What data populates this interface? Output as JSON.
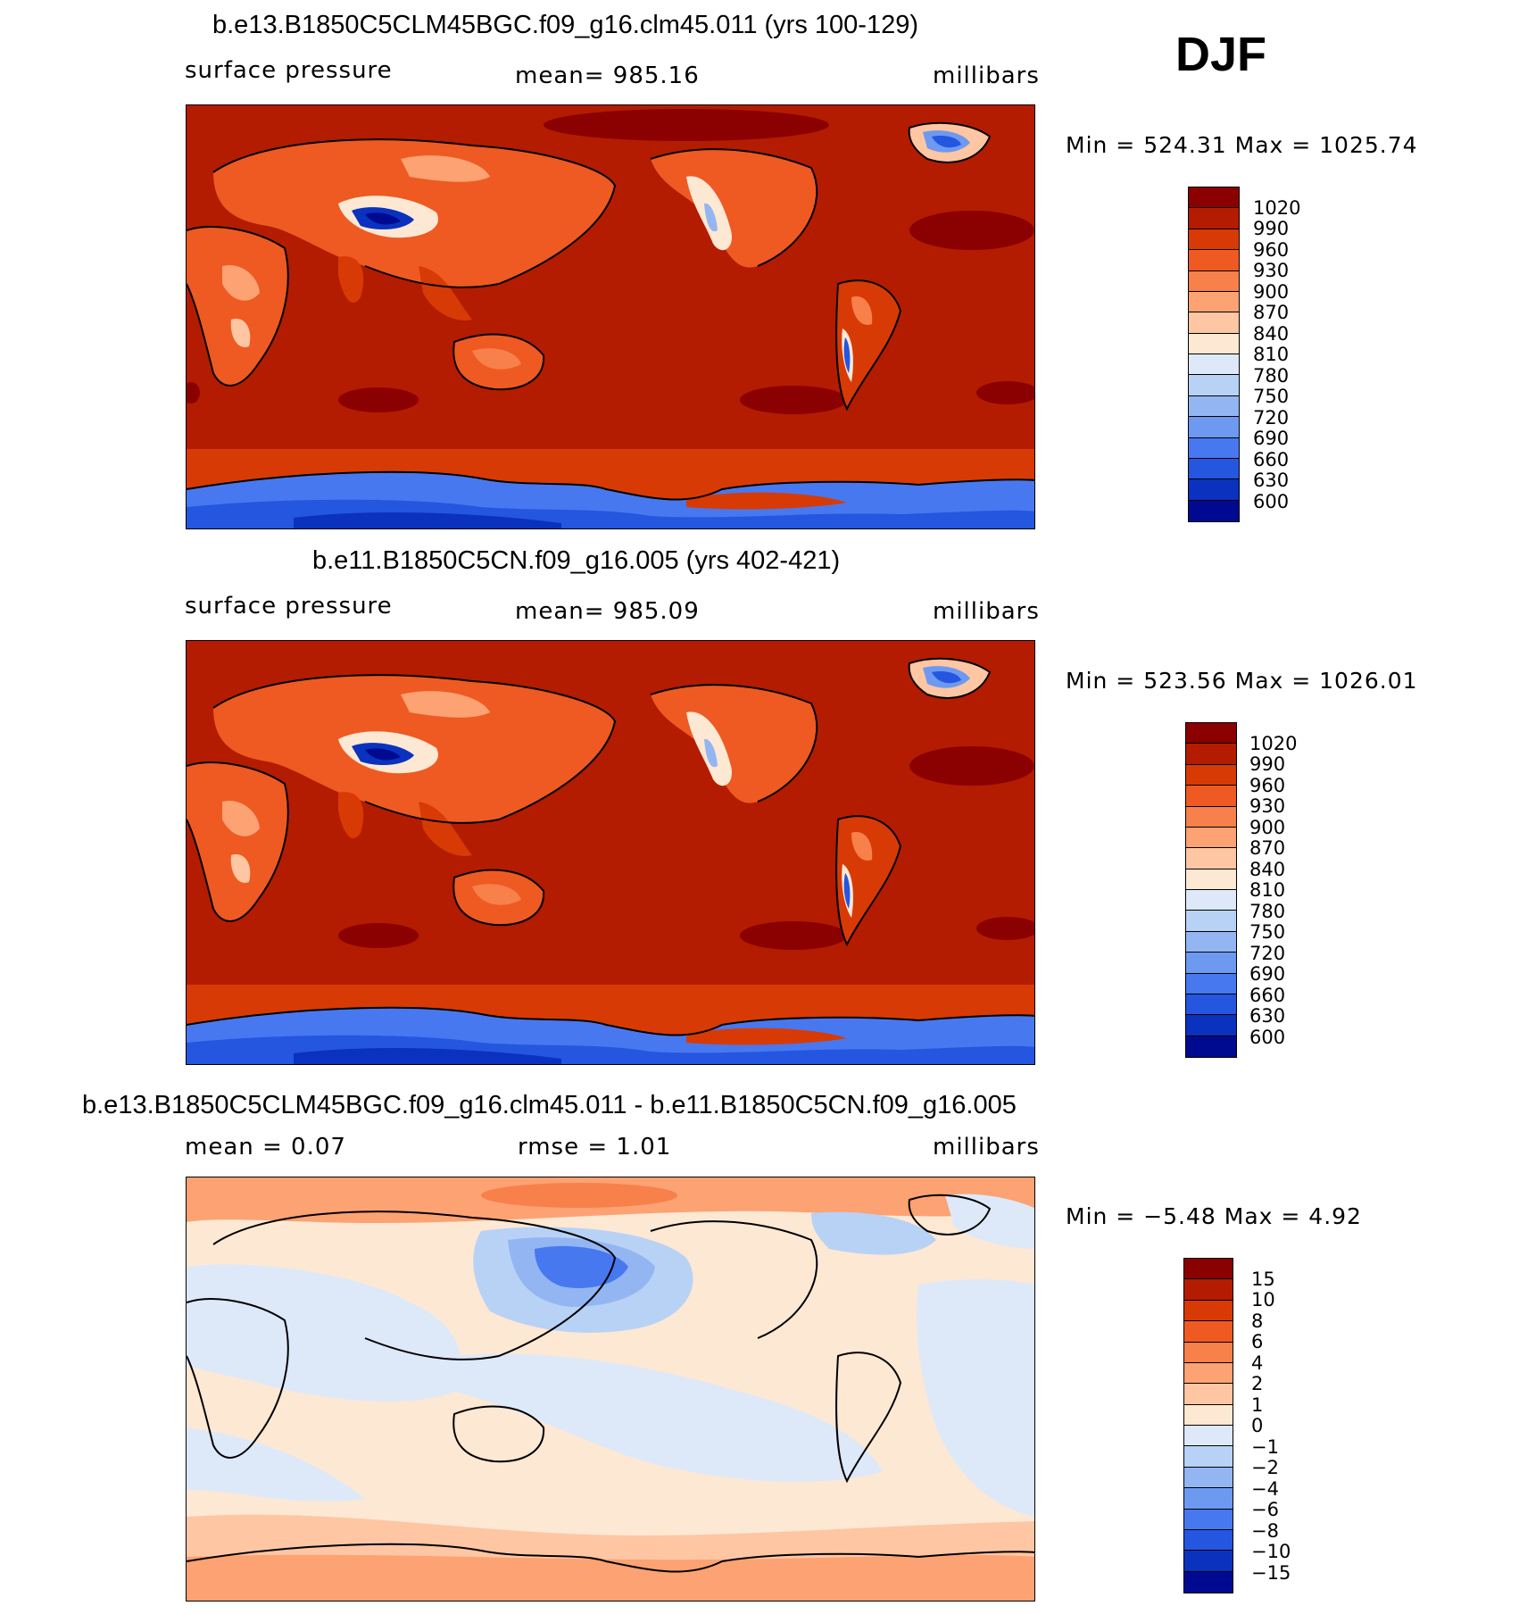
{
  "season": "DJF",
  "panels": [
    {
      "title": "b.e13.B1850C5CLM45BGC.f09_g16.clm45.011 (yrs 100-129)",
      "variable": "surface pressure",
      "stat": "mean=  985.16",
      "units": "millibars",
      "minmax": "Min  =  524.31  Max  =  1025.74",
      "type": "absolute"
    },
    {
      "title": "b.e11.B1850C5CN.f09_g16.005 (yrs 402-421)",
      "variable": "surface pressure",
      "stat": "mean=  985.09",
      "units": "millibars",
      "minmax": "Min  =  523.56  Max  =  1026.01",
      "type": "absolute"
    },
    {
      "title": "b.e13.B1850C5CLM45BGC.f09_g16.clm45.011 - b.e11.B1850C5CN.f09_g16.005",
      "stat_left": "mean  =     0.07",
      "stat_mid": "rmse  =     1.01",
      "units": "millibars",
      "minmax": "Min  =   −5.48  Max  =     4.92",
      "type": "difference"
    }
  ],
  "colorbars": {
    "absolute": {
      "labels": [
        "1020",
        "990",
        "960",
        "930",
        "900",
        "870",
        "840",
        "810",
        "780",
        "750",
        "720",
        "690",
        "660",
        "630",
        "600"
      ],
      "colors": [
        "#8b0000",
        "#b31c00",
        "#d83a06",
        "#ee5a22",
        "#f8804a",
        "#fca273",
        "#fec6a3",
        "#fde8d4",
        "#dde9f8",
        "#b8d2f6",
        "#93b6f3",
        "#6d99f1",
        "#4778ef",
        "#2456e0",
        "#0a32be",
        "#000a90"
      ]
    },
    "difference": {
      "labels": [
        "15",
        "10",
        "8",
        "6",
        "4",
        "2",
        "1",
        "0",
        "−1",
        "−2",
        "−4",
        "−6",
        "−8",
        "−10",
        "−15"
      ],
      "colors": [
        "#8b0000",
        "#b31c00",
        "#d83a06",
        "#ee5a22",
        "#f8804a",
        "#fca273",
        "#fec6a3",
        "#fde8d4",
        "#dde9f8",
        "#b8d2f6",
        "#93b6f3",
        "#6d99f1",
        "#4778ef",
        "#2456e0",
        "#0a32be",
        "#000a90"
      ]
    }
  }
}
